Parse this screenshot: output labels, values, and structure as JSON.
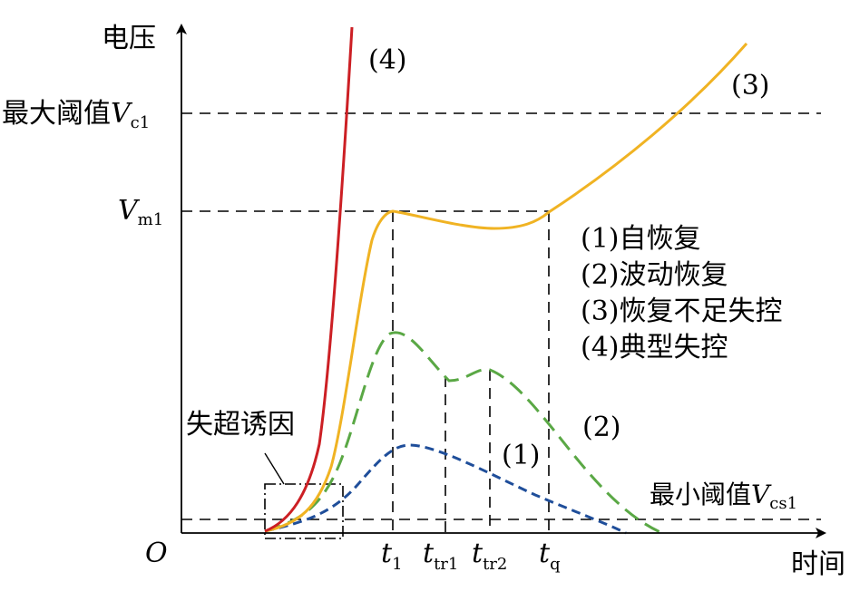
{
  "axes": {
    "y_label": "电压",
    "x_label": "时间",
    "origin_label": "O"
  },
  "thresholds": {
    "max": {
      "prefix": "最大阈值",
      "symbol": "V",
      "subscript": "c1"
    },
    "min": {
      "prefix": "最小阈值",
      "symbol": "V",
      "subscript": "cs1"
    },
    "vm": {
      "symbol": "V",
      "subscript": "m1"
    }
  },
  "time_marks": [
    {
      "symbol": "t",
      "subscript": "1"
    },
    {
      "symbol": "t",
      "subscript": "tr1"
    },
    {
      "symbol": "t",
      "subscript": "tr2"
    },
    {
      "symbol": "t",
      "subscript": "q"
    }
  ],
  "inducement_label": "失超诱因",
  "curve_labels": {
    "c1": "(1)",
    "c2": "(2)",
    "c3": "(3)",
    "c4": "(4)"
  },
  "legend": [
    "(1)自恢复",
    "(2)波动恢复",
    "(3)恢复不足失控",
    "(4)典型失控"
  ],
  "colors": {
    "curve_1": "#1f4e9a",
    "curve_2": "#5aa845",
    "curve_3": "#f0b323",
    "curve_4": "#cc1f24"
  }
}
